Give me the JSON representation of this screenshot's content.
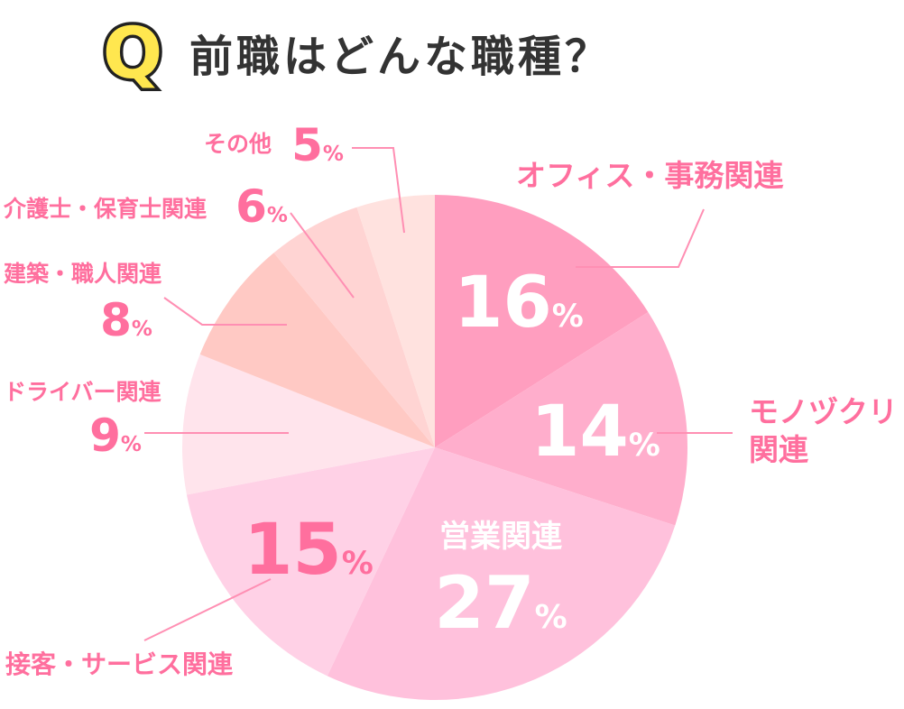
{
  "header": {
    "q_mark": "Q",
    "title": "前職はどんな職種？"
  },
  "chart_data": {
    "type": "pie",
    "title": "前職はどんな職種？",
    "unit": "%",
    "series": [
      {
        "label": "オフィス・事務関連",
        "value": 16,
        "color": "#ff9ebf"
      },
      {
        "label": "モノヅクリ 関連",
        "value": 14,
        "color": "#ffaecc"
      },
      {
        "label": "営業関連",
        "value": 27,
        "color": "#ffc1dc"
      },
      {
        "label": "接客・サービス関連",
        "value": 15,
        "color": "#ffd1e6"
      },
      {
        "label": "ドライバー関連",
        "value": 9,
        "color": "#ffe4ec"
      },
      {
        "label": "建築・職人関連",
        "value": 8,
        "color": "#ffc9c4"
      },
      {
        "label": "介護士・保育士関連",
        "value": 6,
        "color": "#ffd4d3"
      },
      {
        "label": "その他",
        "value": 5,
        "color": "#ffe2df"
      }
    ]
  },
  "colors": {
    "label_pink": "#ff6f9e",
    "leader_line": "#ff8fb3",
    "q_fill": "#ffe74f",
    "q_outline": "#222222",
    "inside_text": "#ffffff"
  }
}
